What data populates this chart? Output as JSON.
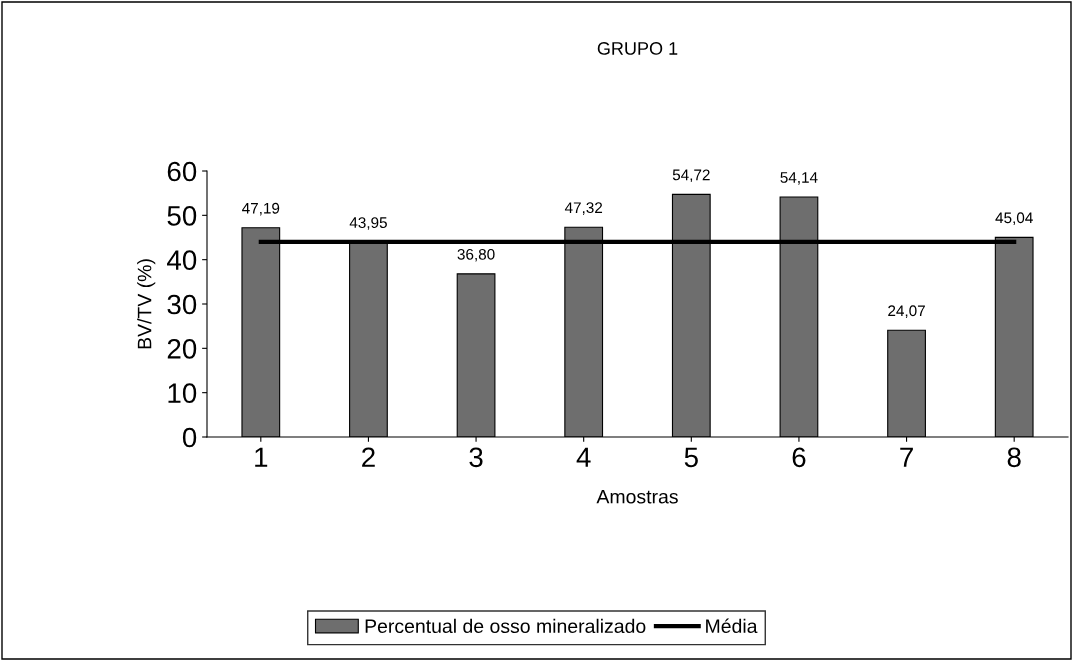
{
  "chart_data": {
    "type": "bar",
    "title": "GRUPO 1",
    "xlabel": "Amostras",
    "ylabel": "BV/TV (%)",
    "categories": [
      "1",
      "2",
      "3",
      "4",
      "5",
      "6",
      "7",
      "8"
    ],
    "series": [
      {
        "name": "Percentual de osso mineralizado",
        "color": "#6e6e6e",
        "values": [
          47.19,
          43.95,
          36.8,
          47.32,
          54.72,
          54.14,
          24.07,
          45.04
        ],
        "value_labels": [
          "47,19",
          "43,95",
          "36,80",
          "47,32",
          "54,72",
          "54,14",
          "24,07",
          "45,04"
        ]
      },
      {
        "name": "Média",
        "type": "line",
        "color": "#000000",
        "values": [
          44,
          44,
          44,
          44,
          44,
          44,
          44,
          44
        ]
      }
    ],
    "ylim": [
      0,
      60
    ],
    "yticks": [
      0,
      10,
      20,
      30,
      40,
      50,
      60
    ],
    "grid": false,
    "legend": "bottom",
    "marker": "none",
    "line_style": "solid"
  }
}
